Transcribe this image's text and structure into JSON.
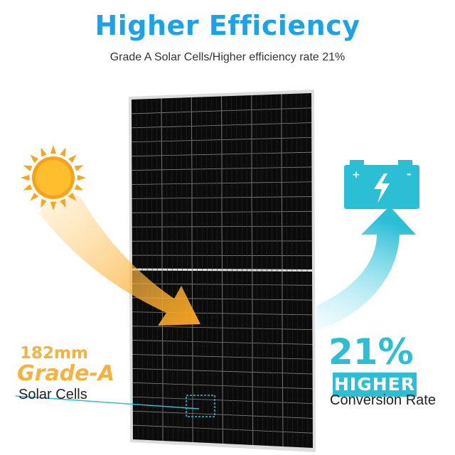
{
  "header": {
    "title": "Higher Efficiency",
    "subtitle": "Grade A Solar Cells/Higher efficiency rate 21%"
  },
  "left_callout": {
    "size": "182mm",
    "grade": "Grade-A",
    "label": "Solar Cells"
  },
  "right_callout": {
    "percent": "21%",
    "badge": "HIGHER",
    "label": "Conversion Rate"
  },
  "battery": {
    "plus": "+",
    "minus": "-"
  },
  "colors": {
    "accent_blue": "#1aa3e8",
    "cyan": "#2bbfd6",
    "orange": "#f7b13c",
    "panel": "#111111"
  },
  "icons": [
    "sun-icon",
    "battery-bolt-icon",
    "arrow-icon"
  ]
}
